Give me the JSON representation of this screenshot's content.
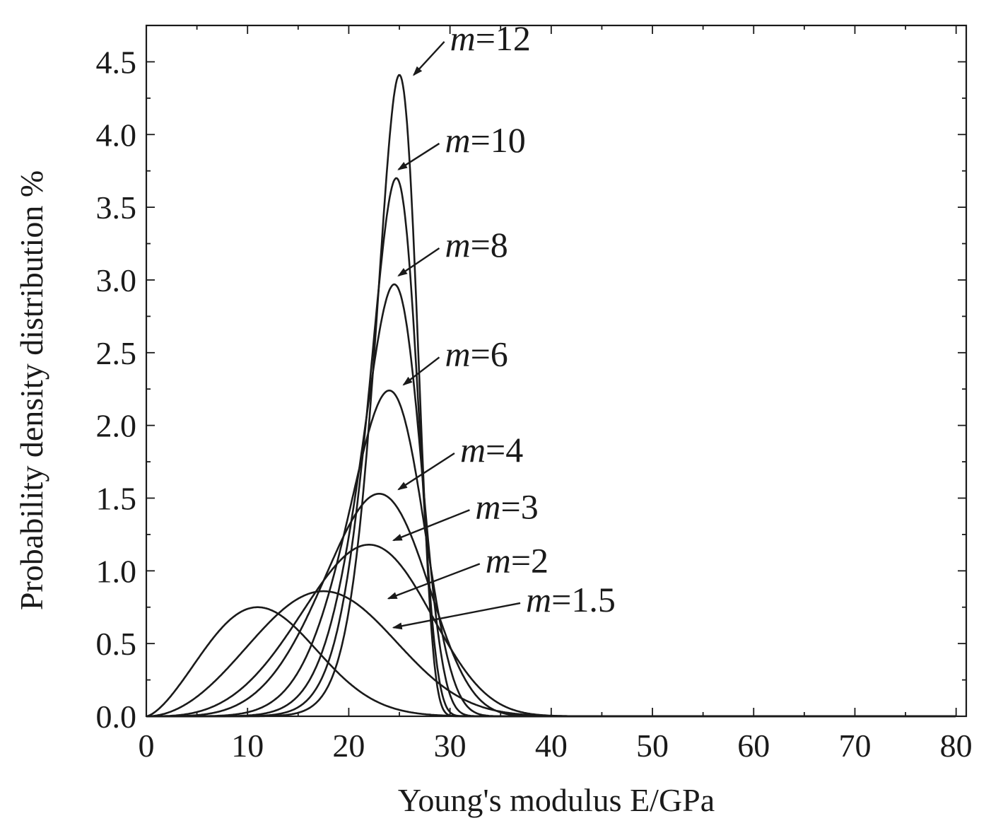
{
  "chart_data": {
    "type": "line",
    "title": "",
    "xlabel": "Young's modulus E/GPa",
    "ylabel": "Probability density distribution %",
    "xlim": [
      0,
      81
    ],
    "ylim": [
      0,
      4.75
    ],
    "xticks": [
      "0",
      "10",
      "20",
      "30",
      "40",
      "50",
      "60",
      "70",
      "80"
    ],
    "yticks": [
      "0.0",
      "0.5",
      "1.0",
      "1.5",
      "2.0",
      "2.5",
      "3.0",
      "3.5",
      "4.0",
      "4.5"
    ],
    "grid": false,
    "series": [
      {
        "name": "m=1.5",
        "m_value": "1.5",
        "peak": {
          "x": 11,
          "y": 0.75
        },
        "arrow_target": {
          "x": 24,
          "y": 0.6
        }
      },
      {
        "name": "m=2",
        "m_value": "2",
        "peak": {
          "x": 17.5,
          "y": 0.86
        },
        "arrow_target": {
          "x": 23.5,
          "y": 0.8
        }
      },
      {
        "name": "m=3",
        "m_value": "3",
        "peak": {
          "x": 22,
          "y": 1.18
        },
        "arrow_target": {
          "x": 24,
          "y": 1.2
        }
      },
      {
        "name": "m=4",
        "m_value": "4",
        "peak": {
          "x": 23,
          "y": 1.53
        },
        "arrow_target": {
          "x": 24.5,
          "y": 1.55
        }
      },
      {
        "name": "m=6",
        "m_value": "6",
        "peak": {
          "x": 24,
          "y": 2.24
        },
        "arrow_target": {
          "x": 25,
          "y": 2.27
        }
      },
      {
        "name": "m=8",
        "m_value": "8",
        "peak": {
          "x": 24.5,
          "y": 2.97
        },
        "arrow_target": {
          "x": 24.5,
          "y": 3.02
        }
      },
      {
        "name": "m=10",
        "m_value": "10",
        "peak": {
          "x": 24.7,
          "y": 3.7
        },
        "arrow_target": {
          "x": 24.5,
          "y": 3.75
        }
      },
      {
        "name": "m=12",
        "m_value": "12",
        "peak": {
          "x": 25,
          "y": 4.41
        },
        "arrow_target": {
          "x": 26,
          "y": 4.4
        }
      }
    ]
  }
}
